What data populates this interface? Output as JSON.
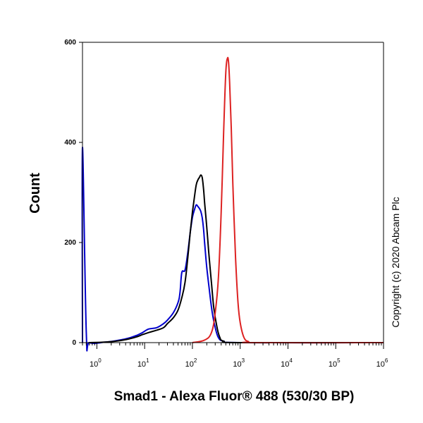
{
  "chart_data": {
    "type": "line",
    "xlabel": "Smad1 - Alexa Fluor® 488 (530/30 BP)",
    "ylabel": "Count",
    "x_scale": "log",
    "xlim": [
      0.5,
      1000000
    ],
    "ylim": [
      0,
      600
    ],
    "x_ticks": [
      {
        "value": 1,
        "base": "10",
        "exp": "0"
      },
      {
        "value": 10,
        "base": "10",
        "exp": "1"
      },
      {
        "value": 100,
        "base": "10",
        "exp": "2"
      },
      {
        "value": 1000,
        "base": "10",
        "exp": "3"
      },
      {
        "value": 10000,
        "base": "10",
        "exp": "4"
      },
      {
        "value": 100000,
        "base": "10",
        "exp": "5"
      },
      {
        "value": 1000000,
        "base": "10",
        "exp": "6"
      }
    ],
    "y_ticks": [
      {
        "value": 0,
        "label": "0"
      },
      {
        "value": 200,
        "label": "200"
      },
      {
        "value": 400,
        "label": "400"
      },
      {
        "value": 600,
        "label": "600"
      }
    ],
    "grid": false,
    "series": [
      {
        "color": "#0000cc",
        "x": [
          0.5,
          0.5,
          0.6,
          0.7,
          1.5,
          3,
          5,
          7,
          9,
          12,
          18,
          25,
          30,
          40,
          50,
          55,
          60,
          70,
          80,
          90,
          100,
          110,
          120,
          130,
          140,
          150,
          160,
          170,
          180,
          200,
          230,
          260,
          300,
          350,
          450,
          1000,
          1000000
        ],
        "y": [
          0,
          390,
          20,
          0,
          1,
          5,
          10,
          15,
          20,
          27,
          30,
          38,
          45,
          60,
          80,
          100,
          140,
          145,
          180,
          220,
          250,
          265,
          275,
          272,
          268,
          262,
          250,
          230,
          200,
          150,
          100,
          60,
          30,
          10,
          3,
          0,
          0
        ]
      },
      {
        "color": "#000000",
        "x": [
          0.7,
          1.5,
          3,
          5,
          7,
          9,
          12,
          18,
          25,
          30,
          40,
          50,
          60,
          70,
          80,
          90,
          100,
          110,
          120,
          130,
          140,
          150,
          160,
          170,
          180,
          200,
          220,
          250,
          280,
          320,
          370,
          450,
          1000,
          1000000
        ],
        "y": [
          0,
          1,
          4,
          8,
          12,
          16,
          20,
          25,
          30,
          38,
          50,
          65,
          90,
          120,
          170,
          220,
          260,
          290,
          315,
          325,
          330,
          335,
          330,
          310,
          280,
          230,
          180,
          120,
          70,
          35,
          12,
          3,
          0,
          0
        ]
      },
      {
        "color": "#dd2222",
        "x": [
          100,
          180,
          250,
          300,
          350,
          400,
          450,
          500,
          540,
          570,
          600,
          650,
          700,
          800,
          900,
          1000,
          1200,
          1500,
          2000,
          1000000
        ],
        "y": [
          0,
          5,
          20,
          60,
          130,
          260,
          420,
          540,
          568,
          560,
          520,
          430,
          320,
          170,
          80,
          40,
          10,
          2,
          0,
          0
        ]
      }
    ]
  },
  "copyright": "Copyright (c) 2020 Abcam Plc"
}
